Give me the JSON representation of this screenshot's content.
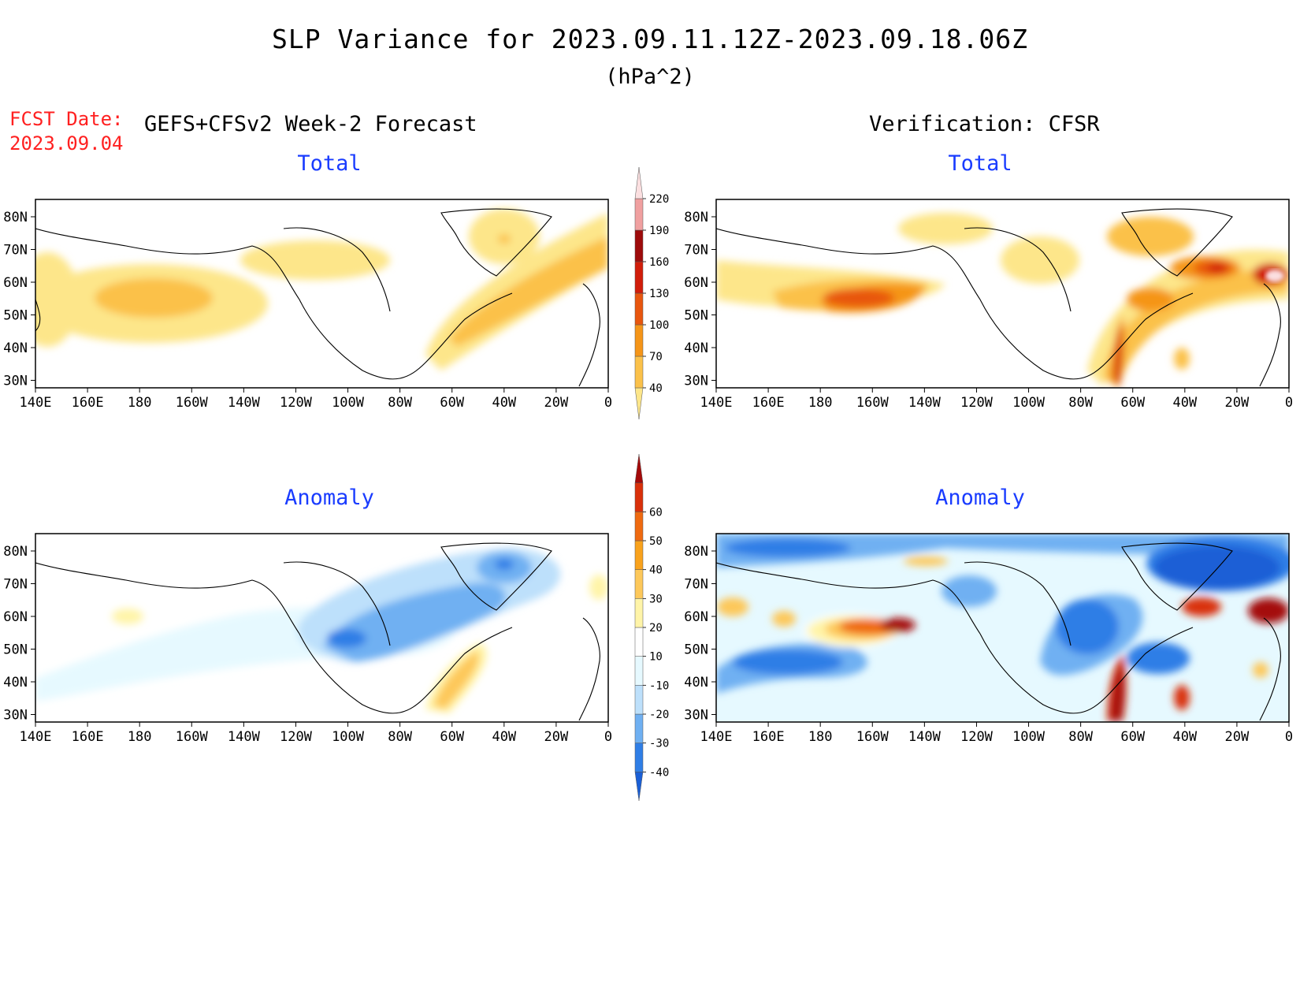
{
  "header": {
    "title": "SLP Variance for 2023.09.11.12Z-2023.09.18.06Z",
    "units": "(hPa^2)",
    "fcst_label": "FCST Date:",
    "fcst_date": "2023.09.04",
    "left_header": "GEFS+CFSv2 Week-2 Forecast",
    "right_header": "Verification: CFSR"
  },
  "panels": {
    "top_left_title": "Total",
    "top_right_title": "Total",
    "bottom_left_title": "Anomaly",
    "bottom_right_title": "Anomaly"
  },
  "axes": {
    "lat_labels": [
      "80N",
      "70N",
      "60N",
      "50N",
      "40N",
      "30N"
    ],
    "lon_labels": [
      "140E",
      "160E",
      "180",
      "160W",
      "140W",
      "120W",
      "100W",
      "80W",
      "60W",
      "40W",
      "20W",
      "0"
    ]
  },
  "colorbar_total": {
    "levels": [
      "40",
      "70",
      "100",
      "130",
      "160",
      "190",
      "220"
    ],
    "colors": [
      "#fde68a",
      "#fbc14a",
      "#f59518",
      "#e8560e",
      "#d11d0a",
      "#9e0b0b",
      "#f0a0a0",
      "#fbdfe0"
    ]
  },
  "colorbar_anomaly": {
    "levels": [
      "-40",
      "-30",
      "-20",
      "-10",
      "10",
      "20",
      "30",
      "40",
      "50",
      "60"
    ],
    "colors": [
      "#1a5fd6",
      "#2f7ee6",
      "#6fb0f2",
      "#bde0fb",
      "#e6f9ff",
      "#ffffff",
      "#fff4a8",
      "#fdc85a",
      "#f9a21c",
      "#ef6a10",
      "#d9300a",
      "#a40a0a"
    ]
  }
}
